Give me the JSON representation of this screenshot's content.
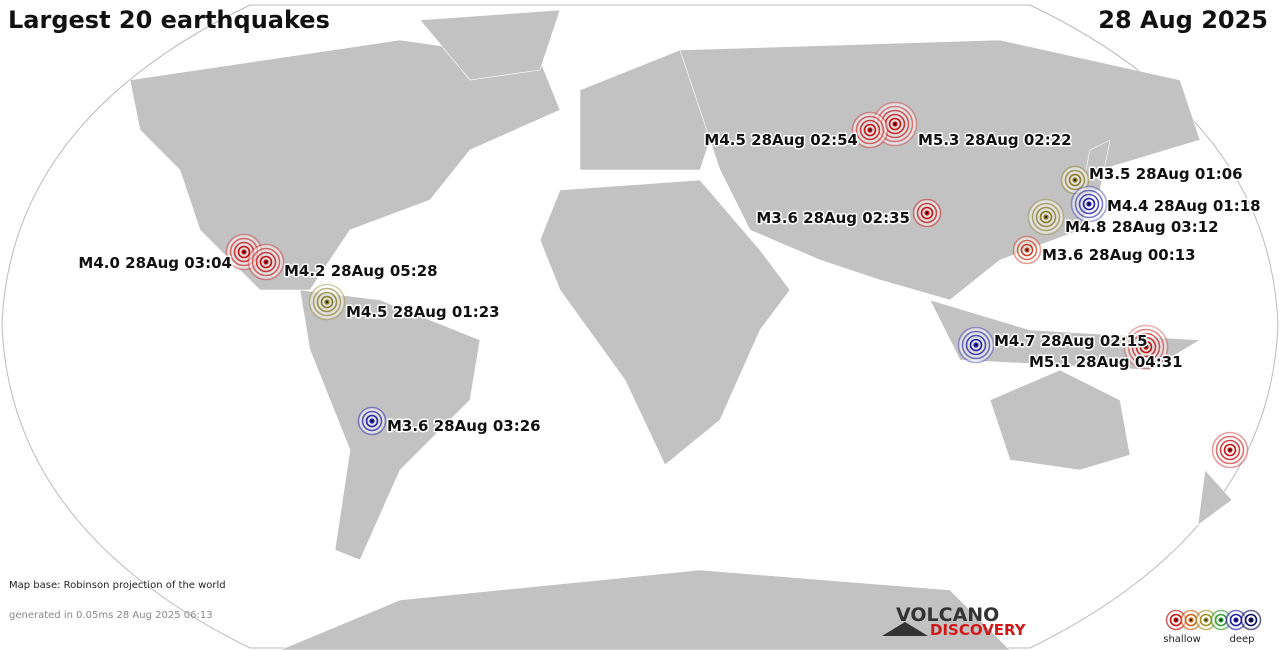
{
  "header": {
    "title": "Largest 20 earthquakes",
    "date": "28 Aug 2025"
  },
  "quakes": [
    {
      "label": "M5.3 28Aug 02:22"
    },
    {
      "label": "M4.5 28Aug 02:54"
    },
    {
      "label": "M3.5 28Aug 01:06"
    },
    {
      "label": "M4.4 28Aug 01:18"
    },
    {
      "label": "M4.8 28Aug 03:12"
    },
    {
      "label": "M3.6 28Aug 02:35"
    },
    {
      "label": "M3.6 28Aug 00:13"
    },
    {
      "label": "M4.0 28Aug 03:04"
    },
    {
      "label": "M4.2 28Aug 05:28"
    },
    {
      "label": "M4.5 28Aug 01:23"
    },
    {
      "label": "M4.7 28Aug 02:15"
    },
    {
      "label": "M5.1 28Aug 04:31"
    },
    {
      "label": "M3.6 28Aug 03:26"
    }
  ],
  "footer": {
    "map_base": "Map base: Robinson projection of the world",
    "generated": "generated in 0.05ms 28 Aug 2025 06:13"
  },
  "logo": {
    "line1": "VOLCANO",
    "line2": "DISCOVERY"
  },
  "legend": {
    "shallow": "shallow",
    "deep": "deep"
  }
}
